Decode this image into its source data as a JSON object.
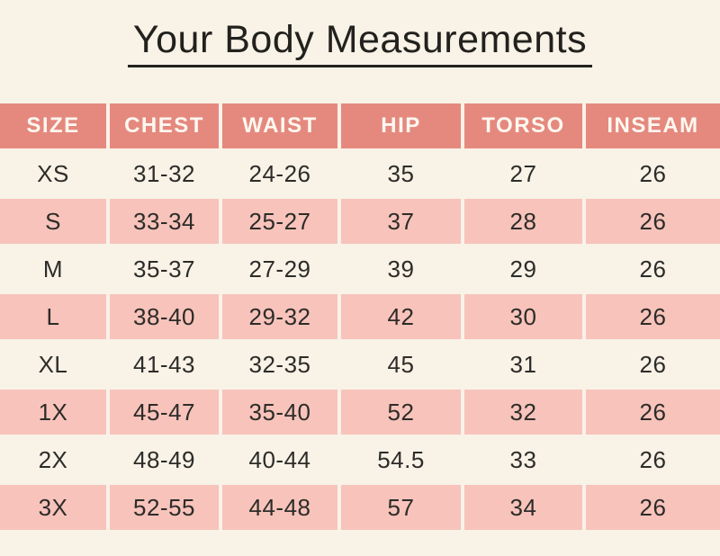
{
  "page": {
    "title": "Your Body Measurements"
  },
  "colors": {
    "background": "#f8f2e7",
    "header_bg": "#e5897f",
    "header_text": "#fdf8f0",
    "row_pink": "#f7c3bb",
    "text_dark": "#2d2c28",
    "title_text": "#22211d"
  },
  "chart_data": {
    "type": "table",
    "title": "Your Body Measurements",
    "columns": [
      "SIZE",
      "CHEST",
      "WAIST",
      "HIP",
      "TORSO",
      "INSEAM"
    ],
    "rows": [
      {
        "shaded": false,
        "cells": [
          "XS",
          "31-32",
          "24-26",
          "35",
          "27",
          "26"
        ]
      },
      {
        "shaded": true,
        "cells": [
          "S",
          "33-34",
          "25-27",
          "37",
          "28",
          "26"
        ]
      },
      {
        "shaded": false,
        "cells": [
          "M",
          "35-37",
          "27-29",
          "39",
          "29",
          "26"
        ]
      },
      {
        "shaded": true,
        "cells": [
          "L",
          "38-40",
          "29-32",
          "42",
          "30",
          "26"
        ]
      },
      {
        "shaded": false,
        "cells": [
          "XL",
          "41-43",
          "32-35",
          "45",
          "31",
          "26"
        ]
      },
      {
        "shaded": true,
        "cells": [
          "1X",
          "45-47",
          "35-40",
          "52",
          "32",
          "26"
        ]
      },
      {
        "shaded": false,
        "cells": [
          "2X",
          "48-49",
          "40-44",
          "54.5",
          "33",
          "26"
        ]
      },
      {
        "shaded": true,
        "cells": [
          "3X",
          "52-55",
          "44-48",
          "57",
          "34",
          "26"
        ]
      }
    ],
    "layout": {
      "shading": "alternating rows, even rows cream / odd rows pink",
      "header_position": "top",
      "grid": "cream gaps between cells"
    }
  }
}
